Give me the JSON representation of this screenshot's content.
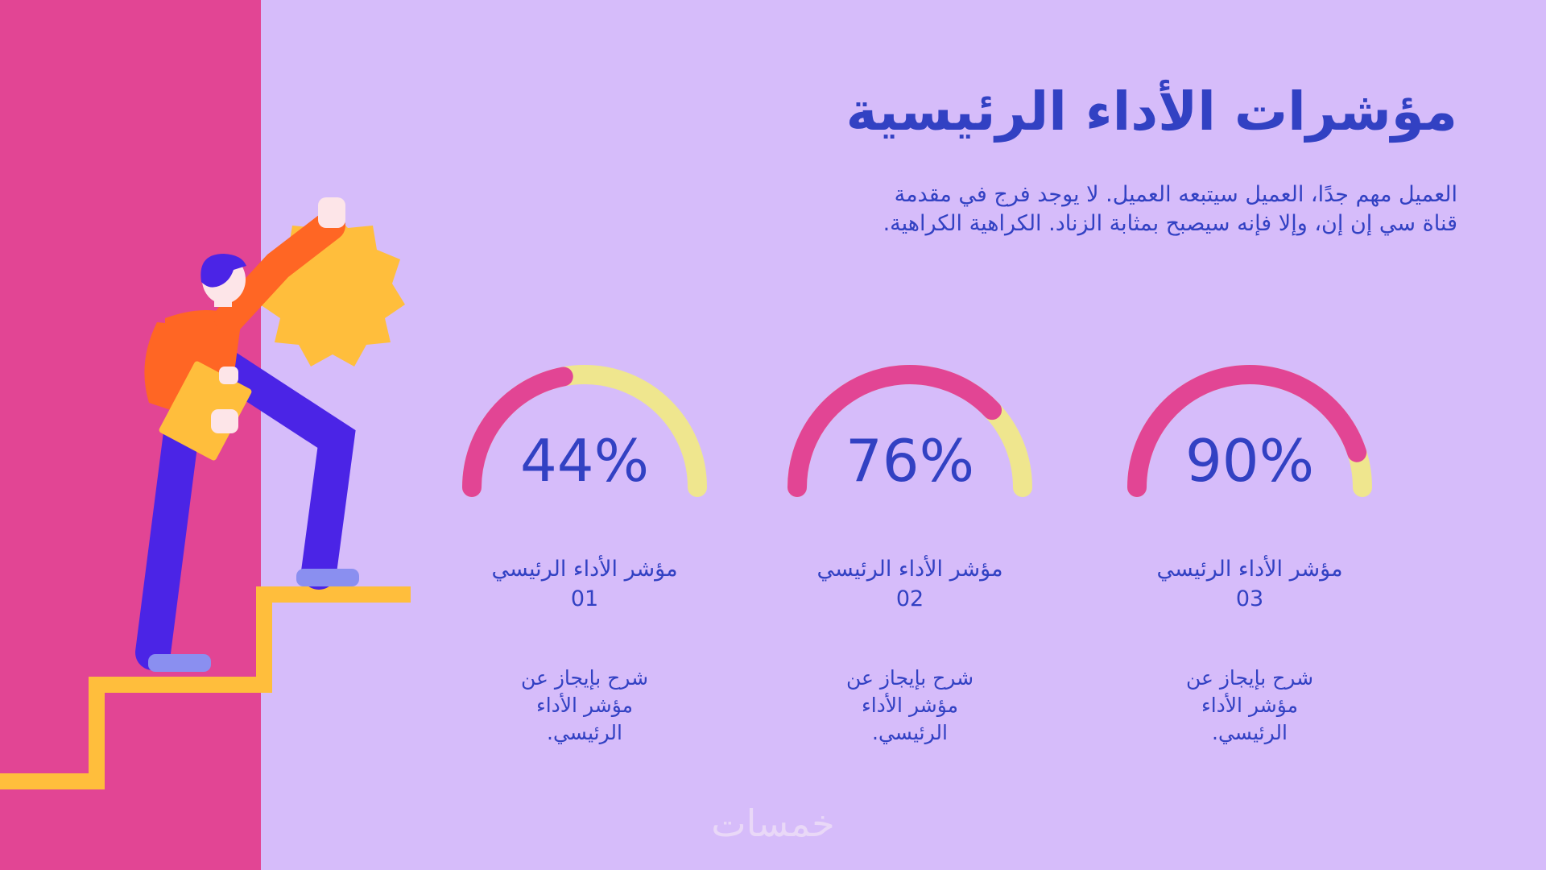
{
  "slide": {
    "title": "مؤشرات الأداء الرئيسية",
    "subtitle": "العميل مهم جدًا، العميل سيتبعه العميل. لا يوجد فرج في مقدمة قناة سي إن إن، وإلا فإنه سيصبح بمثابة الزناد. الكراهية الكراهية.",
    "watermark": "خمسات"
  },
  "colors": {
    "background": "#d6bcfa",
    "panel": "#e24594",
    "accent_text": "#3241c3",
    "gauge_fill": "#e24594",
    "gauge_track": "#efe68e",
    "star": "#ffbe3c",
    "stairs": "#ffbe3c"
  },
  "kpis": [
    {
      "value": "90%",
      "fraction": 0.9,
      "label": "مؤشر الأداء الرئيسي 03",
      "desc": "شرح بإيجاز عن مؤشر الأداء الرئيسي."
    },
    {
      "value": "76%",
      "fraction": 0.76,
      "label": "مؤشر الأداء الرئيسي 02",
      "desc": "شرح بإيجاز عن مؤشر الأداء الرئيسي."
    },
    {
      "value": "44%",
      "fraction": 0.44,
      "label": "مؤشر الأداء الرئيسي 01",
      "desc": "شرح بإيجاز عن مؤشر الأداء الرئيسي."
    }
  ],
  "illustration": {
    "subject": "person climbing stairs reaching for star",
    "icons": [
      "star-icon",
      "stairs-icon",
      "person-icon",
      "folder-icon"
    ]
  }
}
